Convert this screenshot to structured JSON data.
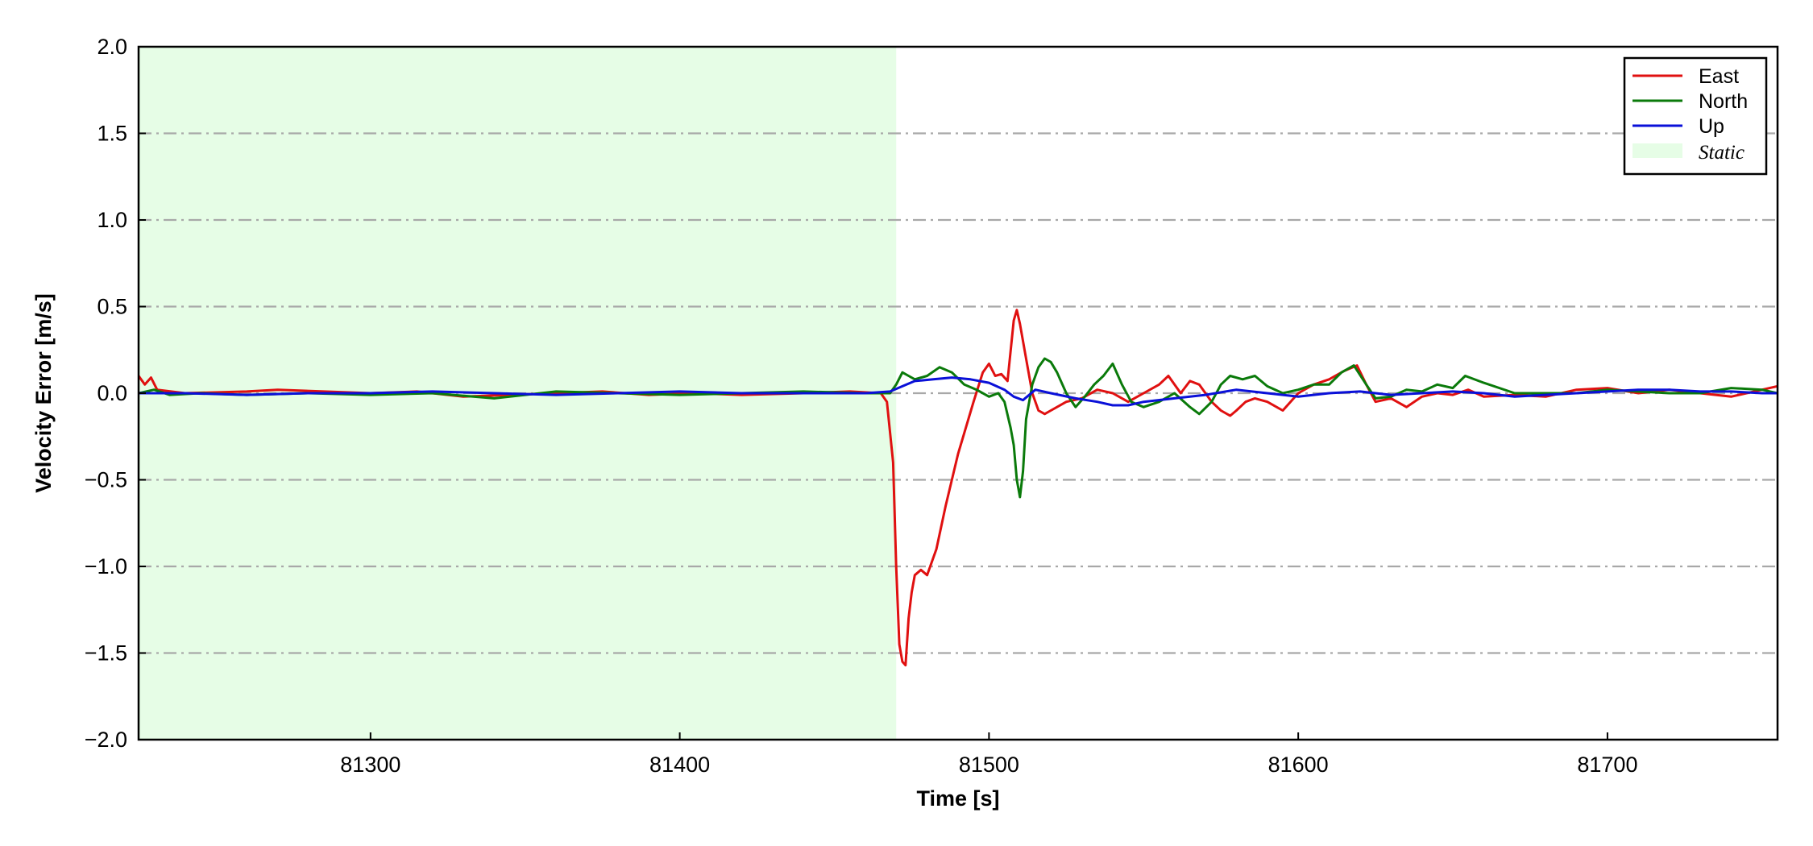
{
  "chart_data": {
    "type": "line",
    "title": "",
    "xlabel": "Time [s]",
    "ylabel": "Velocity Error [m/s]",
    "xlim": [
      81225,
      81755
    ],
    "ylim": [
      -2.0,
      2.0
    ],
    "x_ticks": [
      81300,
      81400,
      81500,
      81600,
      81700
    ],
    "x_tick_labels": [
      "81300",
      "81400",
      "81500",
      "81600",
      "81700"
    ],
    "y_ticks": [
      -2.0,
      -1.5,
      -1.0,
      -0.5,
      0.0,
      0.5,
      1.0,
      1.5,
      2.0
    ],
    "y_tick_labels": [
      "−2.0",
      "−1.5",
      "−1.0",
      "−0.5",
      "0.0",
      "0.5",
      "1.0",
      "1.5",
      "2.0"
    ],
    "grid": "horizontal dash-dot",
    "legend_position": "top-right",
    "shaded_regions": [
      {
        "name": "Static",
        "x_start": 81225,
        "x_end": 81470,
        "color": "#e6fde6"
      }
    ],
    "series": [
      {
        "name": "East",
        "color": "#e01010",
        "x": [
          81225,
          81227,
          81229,
          81231,
          81240,
          81260,
          81270,
          81285,
          81300,
          81315,
          81330,
          81345,
          81360,
          81375,
          81390,
          81405,
          81420,
          81440,
          81455,
          81465,
          81467,
          81469,
          81470,
          81471,
          81472,
          81473,
          81474,
          81475,
          81476,
          81478,
          81480,
          81483,
          81486,
          81490,
          81495,
          81498,
          81500,
          81502,
          81504,
          81506,
          81508,
          81509,
          81510,
          81512,
          81514,
          81516,
          81518,
          81520,
          81525,
          81530,
          81535,
          81540,
          81545,
          81550,
          81555,
          81558,
          81562,
          81565,
          81568,
          81572,
          81575,
          81578,
          81580,
          81583,
          81586,
          81590,
          81595,
          81600,
          81605,
          81610,
          81615,
          81619,
          81622,
          81625,
          81630,
          81635,
          81640,
          81645,
          81650,
          81655,
          81660,
          81670,
          81680,
          81690,
          81700,
          81710,
          81720,
          81730,
          81740,
          81750,
          81755
        ],
        "y": [
          0.1,
          0.05,
          0.09,
          0.02,
          0.0,
          0.01,
          0.02,
          0.01,
          0.0,
          0.01,
          -0.02,
          -0.01,
          0.0,
          0.01,
          -0.01,
          0.0,
          -0.01,
          0.0,
          0.01,
          0.0,
          -0.05,
          -0.4,
          -1.0,
          -1.45,
          -1.55,
          -1.57,
          -1.3,
          -1.15,
          -1.05,
          -1.02,
          -1.05,
          -0.9,
          -0.65,
          -0.35,
          -0.05,
          0.12,
          0.17,
          0.1,
          0.11,
          0.07,
          0.42,
          0.48,
          0.4,
          0.2,
          0.0,
          -0.1,
          -0.12,
          -0.1,
          -0.05,
          -0.03,
          0.02,
          0.0,
          -0.05,
          0.0,
          0.05,
          0.1,
          0.0,
          0.07,
          0.05,
          -0.05,
          -0.1,
          -0.13,
          -0.1,
          -0.05,
          -0.03,
          -0.05,
          -0.1,
          0.0,
          0.05,
          0.08,
          0.13,
          0.16,
          0.05,
          -0.05,
          -0.03,
          -0.08,
          -0.02,
          0.0,
          -0.01,
          0.02,
          -0.02,
          -0.01,
          -0.02,
          0.02,
          0.03,
          0.0,
          0.02,
          0.0,
          -0.02,
          0.02,
          0.04
        ]
      },
      {
        "name": "North",
        "color": "#0a7a0a",
        "x": [
          81225,
          81230,
          81235,
          81245,
          81260,
          81280,
          81300,
          81320,
          81340,
          81360,
          81380,
          81400,
          81420,
          81440,
          81460,
          81468,
          81470,
          81472,
          81474,
          81476,
          81480,
          81484,
          81488,
          81492,
          81496,
          81500,
          81503,
          81505,
          81507,
          81508,
          81509,
          81510,
          81511,
          81512,
          81514,
          81516,
          81518,
          81520,
          81522,
          81525,
          81528,
          81531,
          81534,
          81537,
          81540,
          81543,
          81546,
          81550,
          81555,
          81560,
          81565,
          81568,
          81572,
          81575,
          81578,
          81582,
          81586,
          81590,
          81595,
          81600,
          81605,
          81610,
          81614,
          81618,
          81622,
          81625,
          81630,
          81635,
          81640,
          81645,
          81650,
          81654,
          81660,
          81670,
          81680,
          81690,
          81700,
          81710,
          81720,
          81730,
          81740,
          81750,
          81755
        ],
        "y": [
          0.0,
          0.02,
          -0.01,
          0.0,
          -0.01,
          0.0,
          -0.01,
          0.0,
          -0.03,
          0.01,
          0.0,
          -0.01,
          0.0,
          0.01,
          0.0,
          0.0,
          0.05,
          0.12,
          0.1,
          0.08,
          0.1,
          0.15,
          0.12,
          0.05,
          0.02,
          -0.02,
          0.0,
          -0.05,
          -0.2,
          -0.3,
          -0.5,
          -0.6,
          -0.45,
          -0.15,
          0.05,
          0.15,
          0.2,
          0.18,
          0.12,
          0.0,
          -0.08,
          -0.02,
          0.05,
          0.1,
          0.17,
          0.05,
          -0.05,
          -0.08,
          -0.05,
          0.0,
          -0.08,
          -0.12,
          -0.05,
          0.05,
          0.1,
          0.08,
          0.1,
          0.04,
          0.0,
          0.02,
          0.05,
          0.05,
          0.12,
          0.16,
          0.05,
          -0.03,
          -0.02,
          0.02,
          0.01,
          0.05,
          0.03,
          0.1,
          0.06,
          0.0,
          0.0,
          0.0,
          0.02,
          0.01,
          0.0,
          0.0,
          0.03,
          0.02,
          0.0
        ]
      },
      {
        "name": "Up",
        "color": "#0a10d8",
        "x": [
          81225,
          81240,
          81260,
          81280,
          81300,
          81320,
          81340,
          81360,
          81380,
          81400,
          81420,
          81440,
          81460,
          81468,
          81472,
          81476,
          81482,
          81488,
          81494,
          81500,
          81505,
          81508,
          81511,
          81515,
          81520,
          81528,
          81535,
          81540,
          81545,
          81550,
          81560,
          81570,
          81580,
          81590,
          81600,
          81610,
          81620,
          81630,
          81640,
          81650,
          81660,
          81670,
          81680,
          81690,
          81700,
          81710,
          81720,
          81730,
          81740,
          81750,
          81755
        ],
        "y": [
          0.0,
          0.0,
          -0.01,
          0.0,
          0.0,
          0.01,
          0.0,
          -0.01,
          0.0,
          0.01,
          0.0,
          0.0,
          0.0,
          0.01,
          0.04,
          0.07,
          0.08,
          0.09,
          0.08,
          0.06,
          0.02,
          -0.02,
          -0.04,
          0.02,
          0.0,
          -0.03,
          -0.05,
          -0.07,
          -0.07,
          -0.05,
          -0.03,
          -0.01,
          0.02,
          0.0,
          -0.02,
          0.0,
          0.01,
          -0.01,
          0.0,
          0.01,
          0.0,
          -0.02,
          -0.01,
          0.0,
          0.01,
          0.02,
          0.02,
          0.01,
          0.01,
          0.0,
          0.0
        ]
      }
    ]
  }
}
